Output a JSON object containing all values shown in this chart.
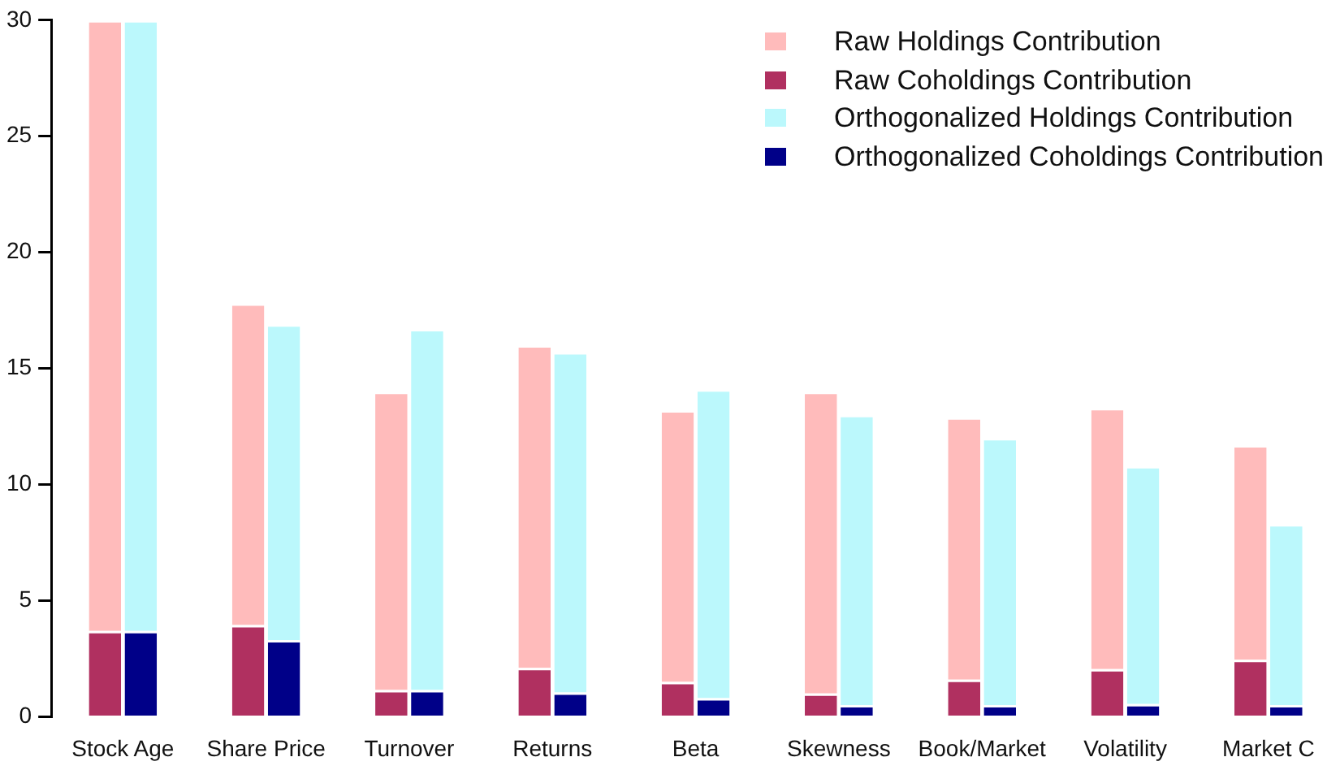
{
  "chart_data": {
    "type": "bar",
    "legend": "top right",
    "grid": false,
    "categories": [
      "Stock Age",
      "Share Price",
      "Turnover",
      "Returns",
      "Beta",
      "Skewness",
      "Book/Market",
      "Volatility",
      "Market C"
    ],
    "ylim": [
      0,
      30
    ],
    "yticks": [
      0,
      5,
      10,
      15,
      20,
      25,
      30
    ],
    "series": [
      {
        "name": "Raw Holdings Contribution",
        "color": "#ffbbbb",
        "base": [
          3.7,
          3.95,
          1.15,
          2.1,
          1.5,
          1.0,
          1.6,
          2.05,
          2.45
        ],
        "values": [
          26.3,
          13.85,
          12.85,
          13.9,
          11.7,
          13.0,
          11.3,
          11.25,
          9.25
        ]
      },
      {
        "name": "Raw Coholdings Contribution",
        "color": "#b03060",
        "values": [
          3.7,
          3.95,
          1.15,
          2.1,
          1.5,
          1.0,
          1.6,
          2.05,
          2.45
        ]
      },
      {
        "name": "Orthogonalized Holdings Contribution",
        "color": "#bbf8fc",
        "base": [
          3.7,
          3.3,
          1.15,
          1.05,
          0.8,
          0.5,
          0.5,
          0.55,
          0.5
        ],
        "values": [
          26.3,
          13.6,
          15.55,
          14.65,
          13.3,
          12.5,
          11.5,
          10.25,
          7.8
        ]
      },
      {
        "name": "Orthogonalized Coholdings Contribution",
        "color": "#000088",
        "values": [
          3.7,
          3.3,
          1.15,
          1.05,
          0.8,
          0.5,
          0.5,
          0.55,
          0.5
        ]
      }
    ]
  }
}
